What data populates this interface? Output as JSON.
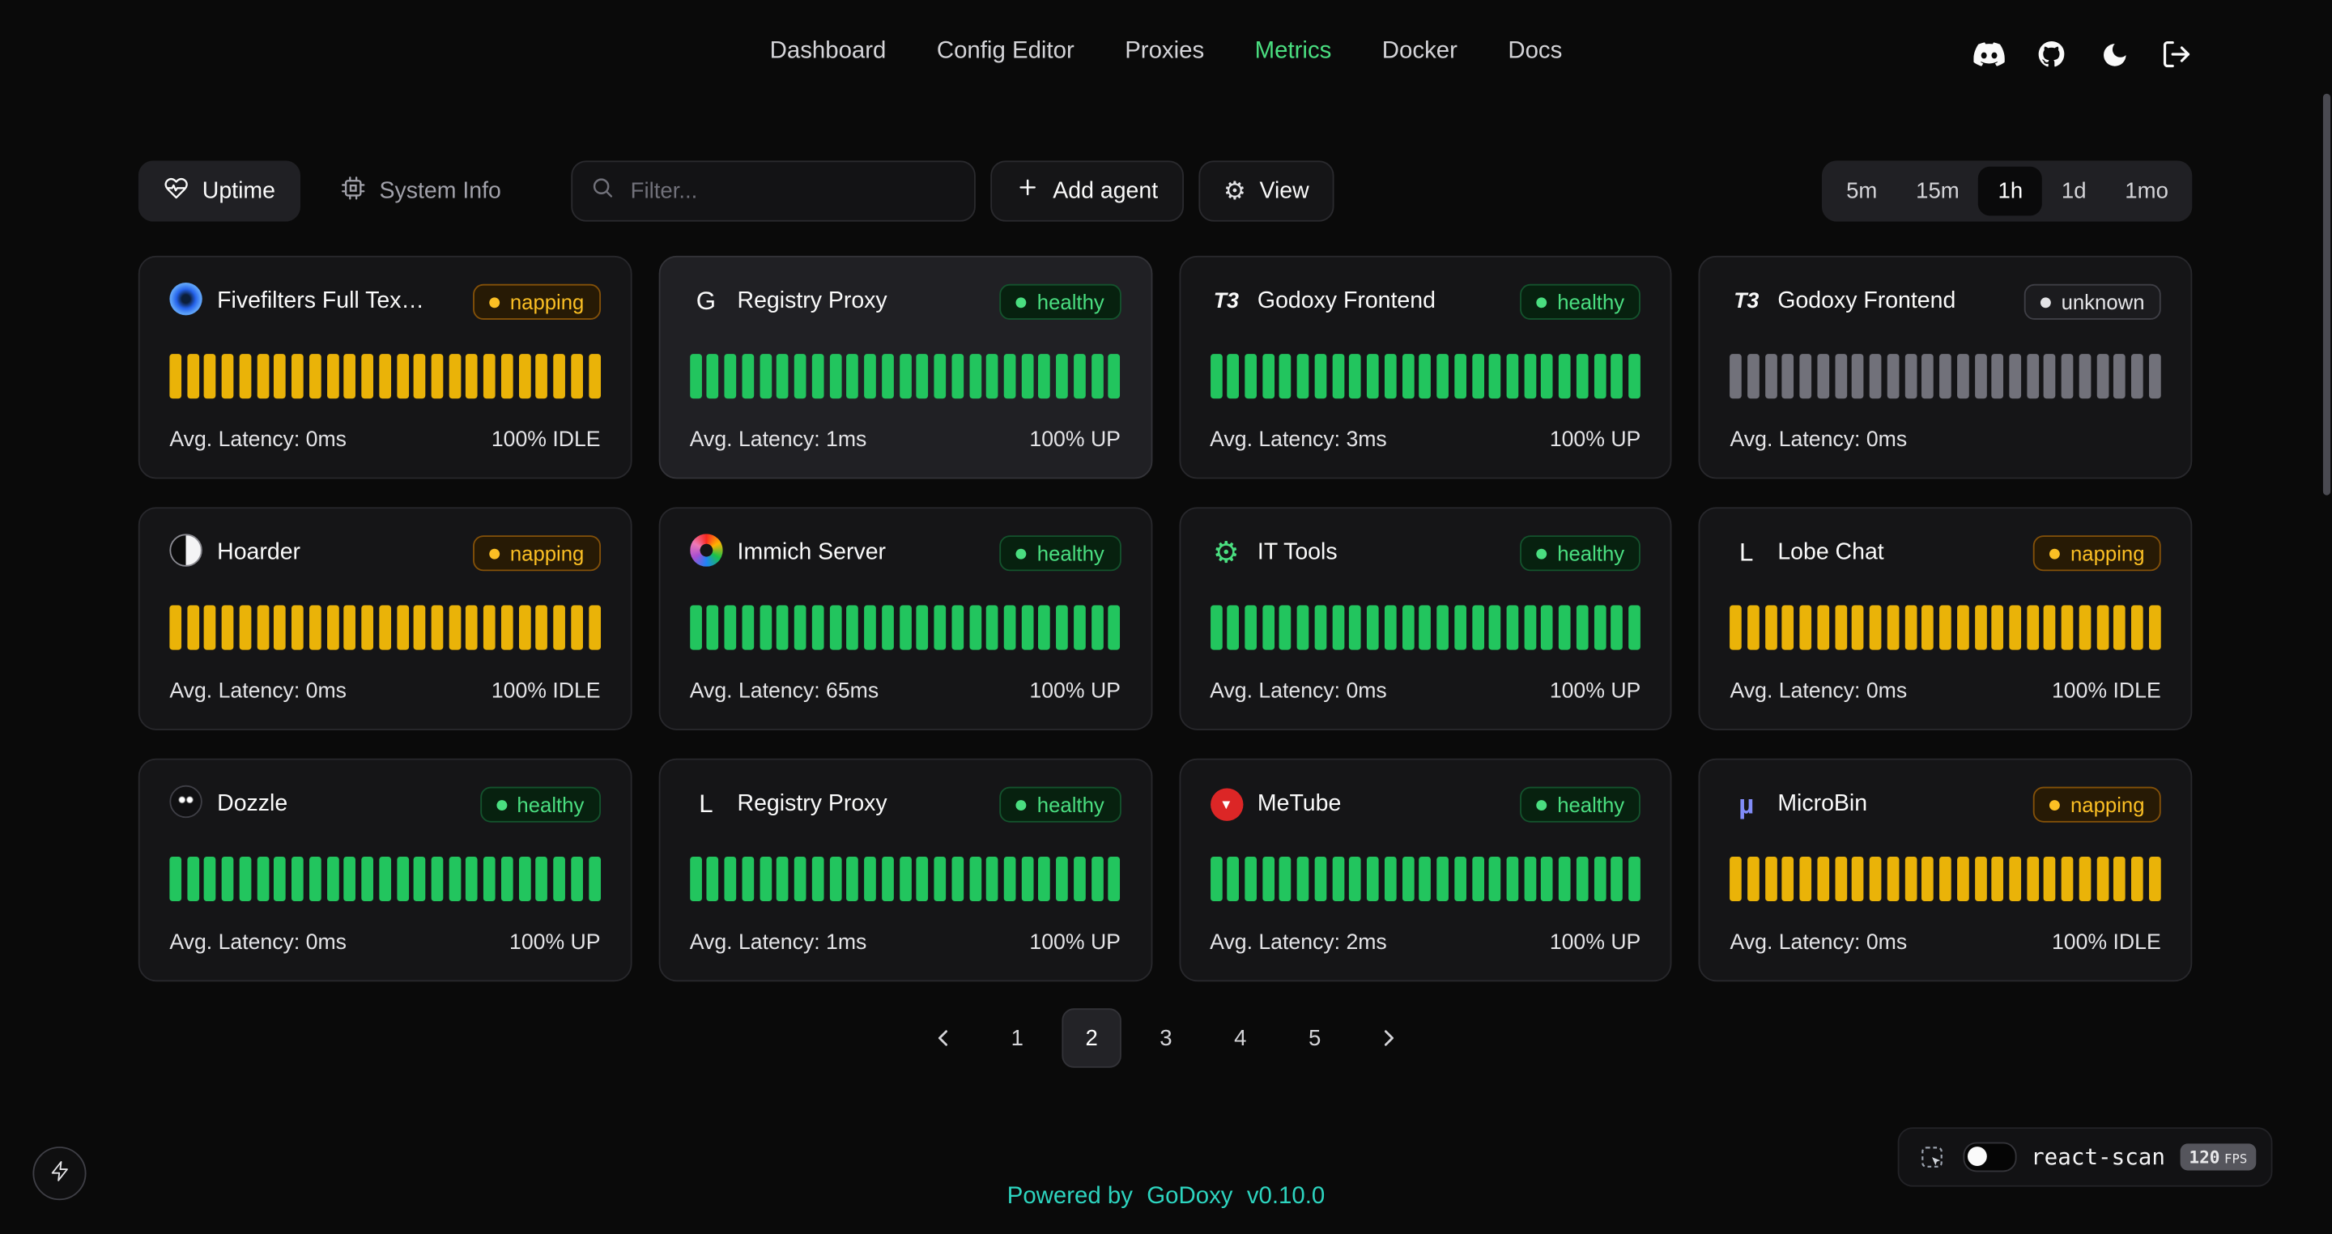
{
  "nav": {
    "items": [
      {
        "label": "Dashboard",
        "active": false
      },
      {
        "label": "Config Editor",
        "active": false
      },
      {
        "label": "Proxies",
        "active": false
      },
      {
        "label": "Metrics",
        "active": true
      },
      {
        "label": "Docker",
        "active": false
      },
      {
        "label": "Docs",
        "active": false
      }
    ],
    "active_color": "#4ade80"
  },
  "toolbar": {
    "uptime_label": "Uptime",
    "system_info_label": "System Info",
    "filter_placeholder": "Filter...",
    "add_agent_label": "Add agent",
    "view_label": "View",
    "time_ranges": [
      {
        "label": "5m",
        "active": false
      },
      {
        "label": "15m",
        "active": false
      },
      {
        "label": "1h",
        "active": true
      },
      {
        "label": "1d",
        "active": false
      },
      {
        "label": "1mo",
        "active": false
      }
    ]
  },
  "status_colors": {
    "healthy": "#22c55e",
    "napping": "#eab308",
    "unknown": "#71717a"
  },
  "cards": [
    {
      "name": "Fivefilters Full Tex…",
      "icon": "fivefilters-icon",
      "icon_glyph": "",
      "status": "napping",
      "status_label": "napping",
      "latency": "Avg. Latency: 0ms",
      "uptime": "100% IDLE",
      "bar_color": "#eab308",
      "bar_count": 25,
      "highlighted": false
    },
    {
      "name": "Registry Proxy",
      "icon": "letter-g-icon",
      "icon_glyph": "G",
      "status": "healthy",
      "status_label": "healthy",
      "latency": "Avg. Latency: 1ms",
      "uptime": "100% UP",
      "bar_color": "#22c55e",
      "bar_count": 25,
      "highlighted": true
    },
    {
      "name": "Godoxy Frontend",
      "icon": "t3-icon",
      "icon_glyph": "T3",
      "status": "healthy",
      "status_label": "healthy",
      "latency": "Avg. Latency: 3ms",
      "uptime": "100% UP",
      "bar_color": "#22c55e",
      "bar_count": 25,
      "highlighted": false
    },
    {
      "name": "Godoxy Frontend",
      "icon": "t3-icon",
      "icon_glyph": "T3",
      "status": "unknown",
      "status_label": "unknown",
      "latency": "Avg. Latency: 0ms",
      "uptime": "",
      "bar_color": "#71717a",
      "bar_count": 25,
      "highlighted": false
    },
    {
      "name": "Hoarder",
      "icon": "hoarder-icon",
      "icon_glyph": "",
      "status": "napping",
      "status_label": "napping",
      "latency": "Avg. Latency: 0ms",
      "uptime": "100% IDLE",
      "bar_color": "#eab308",
      "bar_count": 25,
      "highlighted": false
    },
    {
      "name": "Immich Server",
      "icon": "immich-icon",
      "icon_glyph": "",
      "status": "healthy",
      "status_label": "healthy",
      "latency": "Avg. Latency: 65ms",
      "uptime": "100% UP",
      "bar_color": "#22c55e",
      "bar_count": 25,
      "highlighted": false
    },
    {
      "name": "IT Tools",
      "icon": "it-tools-gear-icon",
      "icon_glyph": "⚙",
      "status": "healthy",
      "status_label": "healthy",
      "latency": "Avg. Latency: 0ms",
      "uptime": "100% UP",
      "bar_color": "#22c55e",
      "bar_count": 25,
      "highlighted": false
    },
    {
      "name": "Lobe Chat",
      "icon": "letter-l-icon",
      "icon_glyph": "L",
      "status": "napping",
      "status_label": "napping",
      "latency": "Avg. Latency: 0ms",
      "uptime": "100% IDLE",
      "bar_color": "#eab308",
      "bar_count": 25,
      "highlighted": false
    },
    {
      "name": "Dozzle",
      "icon": "dozzle-icon",
      "icon_glyph": "",
      "status": "healthy",
      "status_label": "healthy",
      "latency": "Avg. Latency: 0ms",
      "uptime": "100% UP",
      "bar_color": "#22c55e",
      "bar_count": 25,
      "highlighted": false
    },
    {
      "name": "Registry Proxy",
      "icon": "letter-l-icon",
      "icon_glyph": "L",
      "status": "healthy",
      "status_label": "healthy",
      "latency": "Avg. Latency: 1ms",
      "uptime": "100% UP",
      "bar_color": "#22c55e",
      "bar_count": 25,
      "highlighted": false
    },
    {
      "name": "MeTube",
      "icon": "metube-icon",
      "icon_glyph": "▼",
      "status": "healthy",
      "status_label": "healthy",
      "latency": "Avg. Latency: 2ms",
      "uptime": "100% UP",
      "bar_color": "#22c55e",
      "bar_count": 25,
      "highlighted": false
    },
    {
      "name": "MicroBin",
      "icon": "microbin-icon",
      "icon_glyph": "µ",
      "status": "napping",
      "status_label": "napping",
      "latency": "Avg. Latency: 0ms",
      "uptime": "100% IDLE",
      "bar_color": "#eab308",
      "bar_count": 25,
      "highlighted": false
    }
  ],
  "pagination": {
    "pages": [
      "1",
      "2",
      "3",
      "4",
      "5"
    ],
    "active_page": "2"
  },
  "footer": {
    "powered_by": "Powered by",
    "brand": "GoDoxy",
    "version": "v0.10.0",
    "accent_color": "#2dd4bf"
  },
  "react_scan": {
    "label": "react-scan",
    "fps": "120",
    "fps_unit": "FPS"
  }
}
